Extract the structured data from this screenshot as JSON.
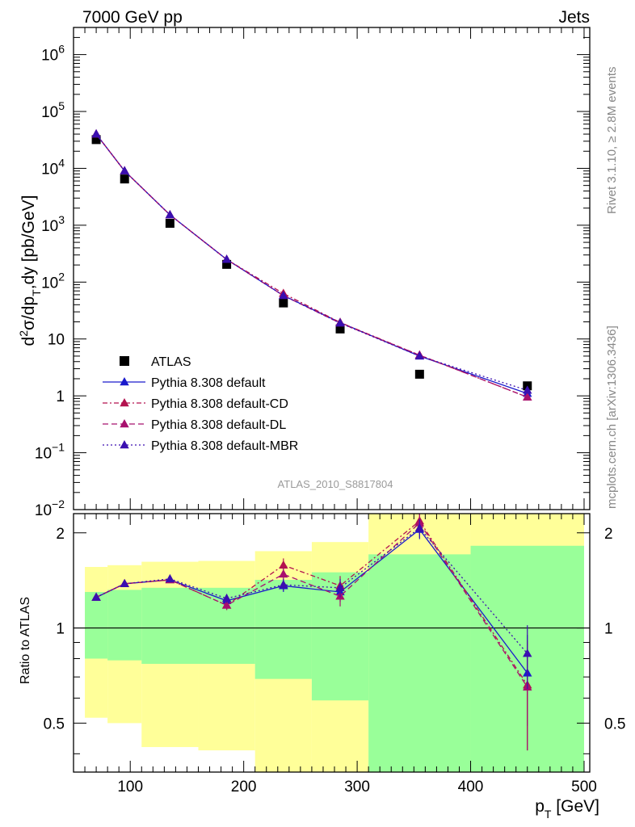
{
  "header": {
    "left": "7000 GeV pp",
    "right": "Jets"
  },
  "side_labels": {
    "rivet": "Rivet 3.1.10, ≥ 2.8M events",
    "mcplots": "mcplots.cern.ch [arXiv:1306.3436]"
  },
  "watermark": "ATLAS_2010_S8817804",
  "chart_data": [
    {
      "type": "scatter",
      "ylabel": "d²σ/dp_T,dy [pb/GeV]",
      "log_y": true,
      "xlim": [
        50,
        505
      ],
      "ylim": [
        0.01,
        3000000
      ],
      "y_ticks": [
        {
          "v": 0.01,
          "base": "10",
          "exp": "−2"
        },
        {
          "v": 0.1,
          "base": "10",
          "exp": "−1"
        },
        {
          "v": 1,
          "base": "1",
          "exp": ""
        },
        {
          "v": 10,
          "base": "10",
          "exp": ""
        },
        {
          "v": 100,
          "base": "10",
          "exp": "2"
        },
        {
          "v": 1000,
          "base": "10",
          "exp": "3"
        },
        {
          "v": 10000,
          "base": "10",
          "exp": "4"
        },
        {
          "v": 100000,
          "base": "10",
          "exp": "5"
        },
        {
          "v": 1000000,
          "base": "10",
          "exp": "6"
        }
      ],
      "legend_position": "bottom-left",
      "x": [
        70,
        95,
        135,
        185,
        235,
        285,
        355,
        450
      ],
      "series": [
        {
          "name": "ATLAS",
          "color": "#000000",
          "style": "data",
          "y": [
            32000,
            6500,
            1080,
            205,
            43,
            15,
            2.4,
            1.5
          ]
        },
        {
          "name": "Pythia 8.308 default",
          "color": "#1a1acc",
          "style": "solid",
          "y": [
            40000,
            9000,
            1520,
            250,
            58,
            19.5,
            5.0,
            1.1
          ]
        },
        {
          "name": "Pythia 8.308 default-CD",
          "color": "#b3124f",
          "style": "dashdot",
          "y": [
            40000,
            9000,
            1520,
            250,
            63,
            19.5,
            5.2,
            0.95
          ]
        },
        {
          "name": "Pythia 8.308 default-DL",
          "color": "#a8106e",
          "style": "dashed",
          "y": [
            40000,
            9000,
            1520,
            250,
            58,
            19.0,
            5.2,
            0.95
          ]
        },
        {
          "name": "Pythia 8.308 default-MBR",
          "color": "#3a0fb0",
          "style": "dotted",
          "y": [
            40000,
            9000,
            1520,
            250,
            58,
            19.0,
            5.0,
            1.25
          ]
        }
      ]
    },
    {
      "type": "line",
      "ylabel": "Ratio to ATLAS",
      "xlabel": "p_T [GeV]",
      "log_y": true,
      "xlim": [
        50,
        505
      ],
      "ylim": [
        0.35,
        2.3
      ],
      "x_ticks": [
        100,
        200,
        300,
        400,
        500
      ],
      "y_ticks": [
        0.5,
        1,
        2
      ],
      "reference_line": 1,
      "bands": [
        {
          "x0": 60,
          "x1": 80,
          "yellow": [
            0.52,
            1.56
          ],
          "green": [
            0.8,
            1.3
          ]
        },
        {
          "x0": 80,
          "x1": 110,
          "yellow": [
            0.5,
            1.58
          ],
          "green": [
            0.79,
            1.32
          ]
        },
        {
          "x0": 110,
          "x1": 160,
          "yellow": [
            0.42,
            1.62
          ],
          "green": [
            0.77,
            1.34
          ]
        },
        {
          "x0": 160,
          "x1": 210,
          "yellow": [
            0.41,
            1.63
          ],
          "green": [
            0.77,
            1.34
          ]
        },
        {
          "x0": 210,
          "x1": 260,
          "yellow": [
            0.35,
            1.75
          ],
          "green": [
            0.69,
            1.42
          ]
        },
        {
          "x0": 260,
          "x1": 310,
          "yellow": [
            0.35,
            1.87
          ],
          "green": [
            0.59,
            1.5
          ]
        },
        {
          "x0": 310,
          "x1": 400,
          "yellow": [
            0.35,
            2.3
          ],
          "green": [
            0.35,
            1.71
          ]
        },
        {
          "x0": 400,
          "x1": 500,
          "yellow": [
            0.35,
            2.3
          ],
          "green": [
            0.35,
            1.82
          ]
        }
      ],
      "x": [
        70,
        95,
        135,
        185,
        235,
        285,
        355,
        450
      ],
      "series": [
        {
          "name": "Pythia 8.308 default",
          "color": "#1a1acc",
          "style": "solid",
          "y": [
            1.25,
            1.38,
            1.42,
            1.22,
            1.36,
            1.3,
            2.05,
            0.72
          ],
          "err": [
            0.02,
            0.03,
            0.03,
            0.04,
            0.06,
            0.09,
            0.14,
            0.23
          ]
        },
        {
          "name": "Pythia 8.308 default-CD",
          "color": "#b3124f",
          "style": "dashdot",
          "y": [
            1.25,
            1.38,
            1.42,
            1.18,
            1.58,
            1.36,
            2.18,
            0.66
          ],
          "err": [
            0.02,
            0.03,
            0.03,
            0.04,
            0.08,
            0.1,
            0.15,
            0.25
          ]
        },
        {
          "name": "Pythia 8.308 default-DL",
          "color": "#a8106e",
          "style": "dashed",
          "y": [
            1.25,
            1.38,
            1.42,
            1.18,
            1.48,
            1.26,
            2.15,
            0.65
          ],
          "err": [
            0.02,
            0.03,
            0.03,
            0.04,
            0.07,
            0.09,
            0.15,
            0.24
          ]
        },
        {
          "name": "Pythia 8.308 default-MBR",
          "color": "#3a0fb0",
          "style": "dotted",
          "y": [
            1.25,
            1.38,
            1.43,
            1.24,
            1.37,
            1.34,
            2.07,
            0.83
          ],
          "err": [
            0.02,
            0.03,
            0.03,
            0.04,
            0.06,
            0.09,
            0.14,
            0.19
          ]
        }
      ]
    }
  ]
}
